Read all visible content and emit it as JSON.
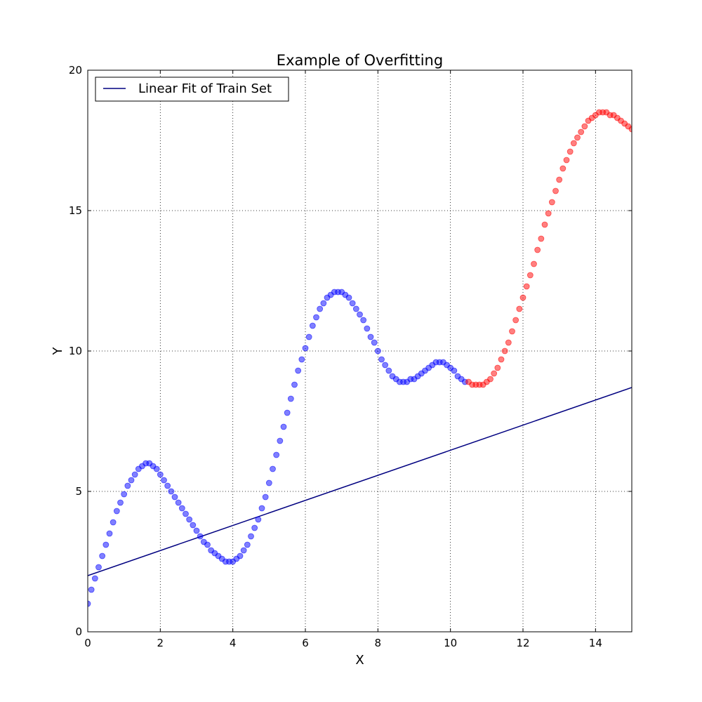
{
  "chart_data": {
    "type": "scatter",
    "title": "Example of Overfitting",
    "xlabel": "X",
    "ylabel": "Y",
    "xlim": [
      0,
      15
    ],
    "ylim": [
      0,
      20
    ],
    "xticks": [
      0,
      2,
      4,
      6,
      8,
      10,
      12,
      14
    ],
    "yticks": [
      0,
      5,
      10,
      15,
      20
    ],
    "grid": true,
    "legend_placement": "top-left",
    "series": [
      {
        "type": "line",
        "name": "Linear Fit of Train Set",
        "color": "#000080",
        "x": [
          0,
          15
        ],
        "y": [
          2.0,
          8.7
        ]
      },
      {
        "type": "scatter",
        "color": "#0000ff",
        "x": [
          0.0,
          0.1,
          0.2,
          0.3,
          0.4,
          0.5,
          0.6,
          0.7,
          0.8,
          0.9,
          1.0,
          1.1,
          1.2,
          1.3,
          1.4,
          1.5,
          1.6,
          1.7,
          1.8,
          1.9,
          2.0,
          2.1,
          2.2,
          2.3,
          2.4,
          2.5,
          2.6,
          2.7,
          2.8,
          2.9,
          3.0,
          3.1,
          3.2,
          3.3,
          3.4,
          3.5,
          3.6,
          3.7,
          3.8,
          3.9,
          4.0,
          4.1,
          4.2,
          4.3,
          4.4,
          4.5,
          4.6,
          4.7,
          4.8,
          4.9,
          5.0,
          5.1,
          5.2,
          5.3,
          5.4,
          5.5,
          5.6,
          5.7,
          5.8,
          5.9,
          6.0,
          6.1,
          6.2,
          6.3,
          6.4,
          6.5,
          6.6,
          6.7,
          6.8,
          6.9,
          7.0,
          7.1,
          7.2,
          7.3,
          7.4,
          7.5,
          7.6,
          7.7,
          7.8,
          7.9,
          8.0,
          8.1,
          8.2,
          8.3,
          8.4,
          8.5,
          8.6,
          8.7,
          8.8,
          8.9,
          9.0,
          9.1,
          9.2,
          9.3,
          9.4,
          9.5,
          9.6,
          9.7,
          9.8,
          9.9,
          10.0,
          10.1,
          10.2,
          10.3,
          10.4
        ],
        "y": [
          1.0,
          1.5,
          1.9,
          2.3,
          2.7,
          3.1,
          3.5,
          3.9,
          4.3,
          4.6,
          4.9,
          5.2,
          5.4,
          5.6,
          5.8,
          5.9,
          6.0,
          6.0,
          5.9,
          5.8,
          5.6,
          5.4,
          5.2,
          5.0,
          4.8,
          4.6,
          4.4,
          4.2,
          4.0,
          3.8,
          3.6,
          3.4,
          3.2,
          3.1,
          2.9,
          2.8,
          2.7,
          2.6,
          2.5,
          2.5,
          2.5,
          2.6,
          2.7,
          2.9,
          3.1,
          3.4,
          3.7,
          4.0,
          4.4,
          4.8,
          5.3,
          5.8,
          6.3,
          6.8,
          7.3,
          7.8,
          8.3,
          8.8,
          9.3,
          9.7,
          10.1,
          10.5,
          10.9,
          11.2,
          11.5,
          11.7,
          11.9,
          12.0,
          12.1,
          12.1,
          12.1,
          12.0,
          11.9,
          11.7,
          11.5,
          11.3,
          11.1,
          10.8,
          10.5,
          10.3,
          10.0,
          9.7,
          9.5,
          9.3,
          9.1,
          9.0,
          8.9,
          8.9,
          8.9,
          9.0,
          9.0,
          9.1,
          9.2,
          9.3,
          9.4,
          9.5,
          9.6,
          9.6,
          9.6,
          9.5,
          9.4,
          9.3,
          9.1,
          9.0,
          8.9
        ]
      },
      {
        "type": "scatter",
        "color": "#ff0000",
        "x": [
          10.5,
          10.6,
          10.7,
          10.8,
          10.9,
          11.0,
          11.1,
          11.2,
          11.3,
          11.4,
          11.5,
          11.6,
          11.7,
          11.8,
          11.9,
          12.0,
          12.1,
          12.2,
          12.3,
          12.4,
          12.5,
          12.6,
          12.7,
          12.8,
          12.9,
          13.0,
          13.1,
          13.2,
          13.3,
          13.4,
          13.5,
          13.6,
          13.7,
          13.8,
          13.9,
          14.0,
          14.1,
          14.2,
          14.3,
          14.4,
          14.5,
          14.6,
          14.7,
          14.8,
          14.9,
          15.0
        ],
        "y": [
          8.9,
          8.8,
          8.8,
          8.8,
          8.8,
          8.9,
          9.0,
          9.2,
          9.4,
          9.7,
          10.0,
          10.3,
          10.7,
          11.1,
          11.5,
          11.9,
          12.3,
          12.7,
          13.1,
          13.6,
          14.0,
          14.5,
          14.9,
          15.3,
          15.7,
          16.1,
          16.5,
          16.8,
          17.1,
          17.4,
          17.6,
          17.8,
          18.0,
          18.2,
          18.3,
          18.4,
          18.5,
          18.5,
          18.5,
          18.4,
          18.4,
          18.3,
          18.2,
          18.1,
          18.0,
          17.9
        ]
      }
    ]
  }
}
